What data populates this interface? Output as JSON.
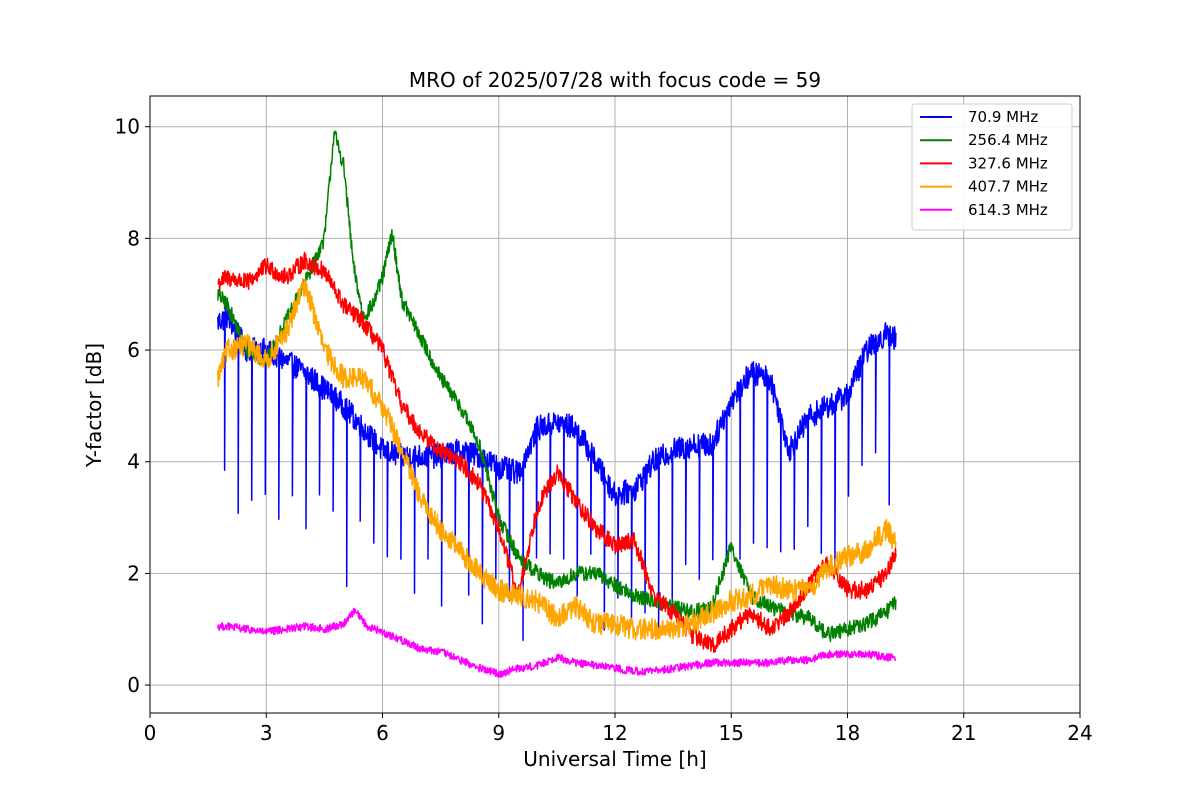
{
  "chart_data": {
    "type": "line",
    "title": "MRO of 2025/07/28 with focus code = 59",
    "xlabel": "Universal Time [h]",
    "ylabel": "Y-factor [dB]",
    "xlim": [
      0,
      24
    ],
    "ylim": [
      -0.5,
      10.55
    ],
    "xticks": [
      0,
      3,
      6,
      9,
      12,
      15,
      18,
      21,
      24
    ],
    "yticks": [
      0,
      2,
      4,
      6,
      8,
      10
    ],
    "grid": true,
    "legend_position": "top-right",
    "series": [
      {
        "name": " 70.9 MHz",
        "color": "#0000ff",
        "noise": 0.22,
        "dips": "regular",
        "x": [
          1.75,
          2.0,
          2.5,
          3.0,
          3.5,
          4.0,
          4.5,
          5.0,
          5.5,
          6.0,
          6.5,
          7.0,
          7.5,
          8.0,
          8.5,
          9.0,
          9.5,
          10.0,
          10.5,
          11.0,
          11.5,
          12.0,
          12.5,
          13.0,
          13.5,
          14.0,
          14.5,
          15.0,
          15.5,
          16.0,
          16.5,
          17.0,
          17.5,
          18.0,
          18.5,
          19.0,
          19.25
        ],
        "y": [
          6.5,
          6.6,
          6.0,
          6.0,
          5.8,
          5.6,
          5.3,
          5.0,
          4.6,
          4.2,
          4.1,
          4.1,
          4.1,
          4.2,
          4.1,
          3.9,
          3.8,
          4.6,
          4.7,
          4.6,
          4.0,
          3.4,
          3.5,
          4.0,
          4.2,
          4.3,
          4.3,
          5.1,
          5.6,
          5.5,
          4.2,
          4.8,
          5.0,
          5.2,
          6.0,
          6.3,
          6.2
        ]
      },
      {
        "name": "256.4 MHz",
        "color": "#008000",
        "noise": 0.14,
        "dips": "none",
        "x": [
          1.75,
          2.0,
          2.5,
          3.0,
          3.5,
          4.0,
          4.5,
          4.75,
          5.0,
          5.25,
          5.5,
          5.75,
          6.0,
          6.25,
          6.5,
          7.0,
          7.5,
          8.0,
          8.5,
          9.0,
          9.5,
          10.0,
          10.5,
          11.0,
          11.5,
          12.0,
          12.5,
          13.0,
          13.5,
          14.0,
          14.5,
          15.0,
          15.5,
          16.0,
          16.5,
          17.0,
          17.5,
          18.0,
          18.5,
          19.0,
          19.25
        ],
        "y": [
          7.0,
          6.8,
          6.0,
          5.8,
          6.5,
          7.2,
          8.0,
          9.9,
          9.3,
          7.5,
          6.6,
          6.8,
          7.3,
          8.1,
          6.9,
          6.2,
          5.5,
          5.0,
          4.3,
          3.0,
          2.3,
          2.0,
          1.8,
          2.0,
          2.0,
          1.8,
          1.6,
          1.5,
          1.4,
          1.3,
          1.4,
          2.5,
          1.6,
          1.4,
          1.3,
          1.2,
          0.9,
          1.0,
          1.1,
          1.3,
          1.5
        ]
      },
      {
        "name": "327.6 MHz",
        "color": "#ff0000",
        "noise": 0.16,
        "dips": "none",
        "x": [
          1.75,
          2.0,
          2.5,
          3.0,
          3.5,
          4.0,
          4.5,
          5.0,
          5.5,
          6.0,
          6.5,
          7.0,
          7.5,
          8.0,
          8.5,
          9.0,
          9.5,
          10.0,
          10.5,
          11.0,
          11.5,
          12.0,
          12.5,
          13.0,
          13.5,
          14.0,
          14.5,
          15.0,
          15.5,
          16.0,
          16.5,
          17.0,
          17.5,
          18.0,
          18.5,
          19.0,
          19.25
        ],
        "y": [
          7.2,
          7.3,
          7.2,
          7.5,
          7.3,
          7.6,
          7.4,
          6.8,
          6.5,
          6.0,
          5.0,
          4.5,
          4.2,
          4.0,
          3.6,
          2.8,
          1.6,
          3.2,
          3.8,
          3.3,
          2.8,
          2.5,
          2.6,
          1.6,
          1.3,
          0.9,
          0.7,
          1.0,
          1.3,
          1.0,
          1.3,
          1.8,
          2.2,
          1.7,
          1.7,
          2.0,
          2.4
        ]
      },
      {
        "name": "407.7 MHz",
        "color": "#ffa500",
        "noise": 0.2,
        "dips": "none",
        "x": [
          1.75,
          2.0,
          2.5,
          3.0,
          3.5,
          4.0,
          4.5,
          5.0,
          5.5,
          6.0,
          6.5,
          7.0,
          7.5,
          8.0,
          8.5,
          9.0,
          9.5,
          10.0,
          10.5,
          11.0,
          11.5,
          12.0,
          12.5,
          13.0,
          13.5,
          14.0,
          14.5,
          15.0,
          15.5,
          16.0,
          16.5,
          17.0,
          17.5,
          18.0,
          18.5,
          19.0,
          19.25
        ],
        "y": [
          5.5,
          6.0,
          6.1,
          5.8,
          6.3,
          7.2,
          6.0,
          5.5,
          5.5,
          5.0,
          4.2,
          3.3,
          2.8,
          2.4,
          2.0,
          1.7,
          1.6,
          1.5,
          1.2,
          1.4,
          1.1,
          1.1,
          1.0,
          1.0,
          1.0,
          1.1,
          1.3,
          1.5,
          1.6,
          1.8,
          1.7,
          1.7,
          2.1,
          2.3,
          2.4,
          2.8,
          2.5
        ]
      },
      {
        "name": "614.3 MHz",
        "color": "#ff00ff",
        "noise": 0.07,
        "dips": "none",
        "x": [
          1.75,
          2.0,
          2.5,
          3.0,
          3.5,
          4.0,
          4.5,
          5.0,
          5.3,
          5.6,
          6.0,
          6.5,
          7.0,
          7.5,
          8.0,
          8.5,
          9.0,
          9.5,
          10.0,
          10.5,
          11.0,
          11.5,
          12.0,
          12.5,
          13.0,
          13.5,
          14.0,
          14.5,
          15.0,
          15.5,
          16.0,
          16.5,
          17.0,
          17.5,
          18.0,
          18.5,
          19.0,
          19.25
        ],
        "y": [
          1.05,
          1.05,
          1.0,
          0.95,
          1.0,
          1.05,
          1.0,
          1.1,
          1.35,
          1.05,
          0.95,
          0.8,
          0.65,
          0.6,
          0.45,
          0.3,
          0.2,
          0.3,
          0.35,
          0.5,
          0.4,
          0.35,
          0.3,
          0.25,
          0.25,
          0.3,
          0.35,
          0.4,
          0.4,
          0.4,
          0.4,
          0.45,
          0.45,
          0.55,
          0.55,
          0.55,
          0.5,
          0.5
        ]
      }
    ]
  }
}
